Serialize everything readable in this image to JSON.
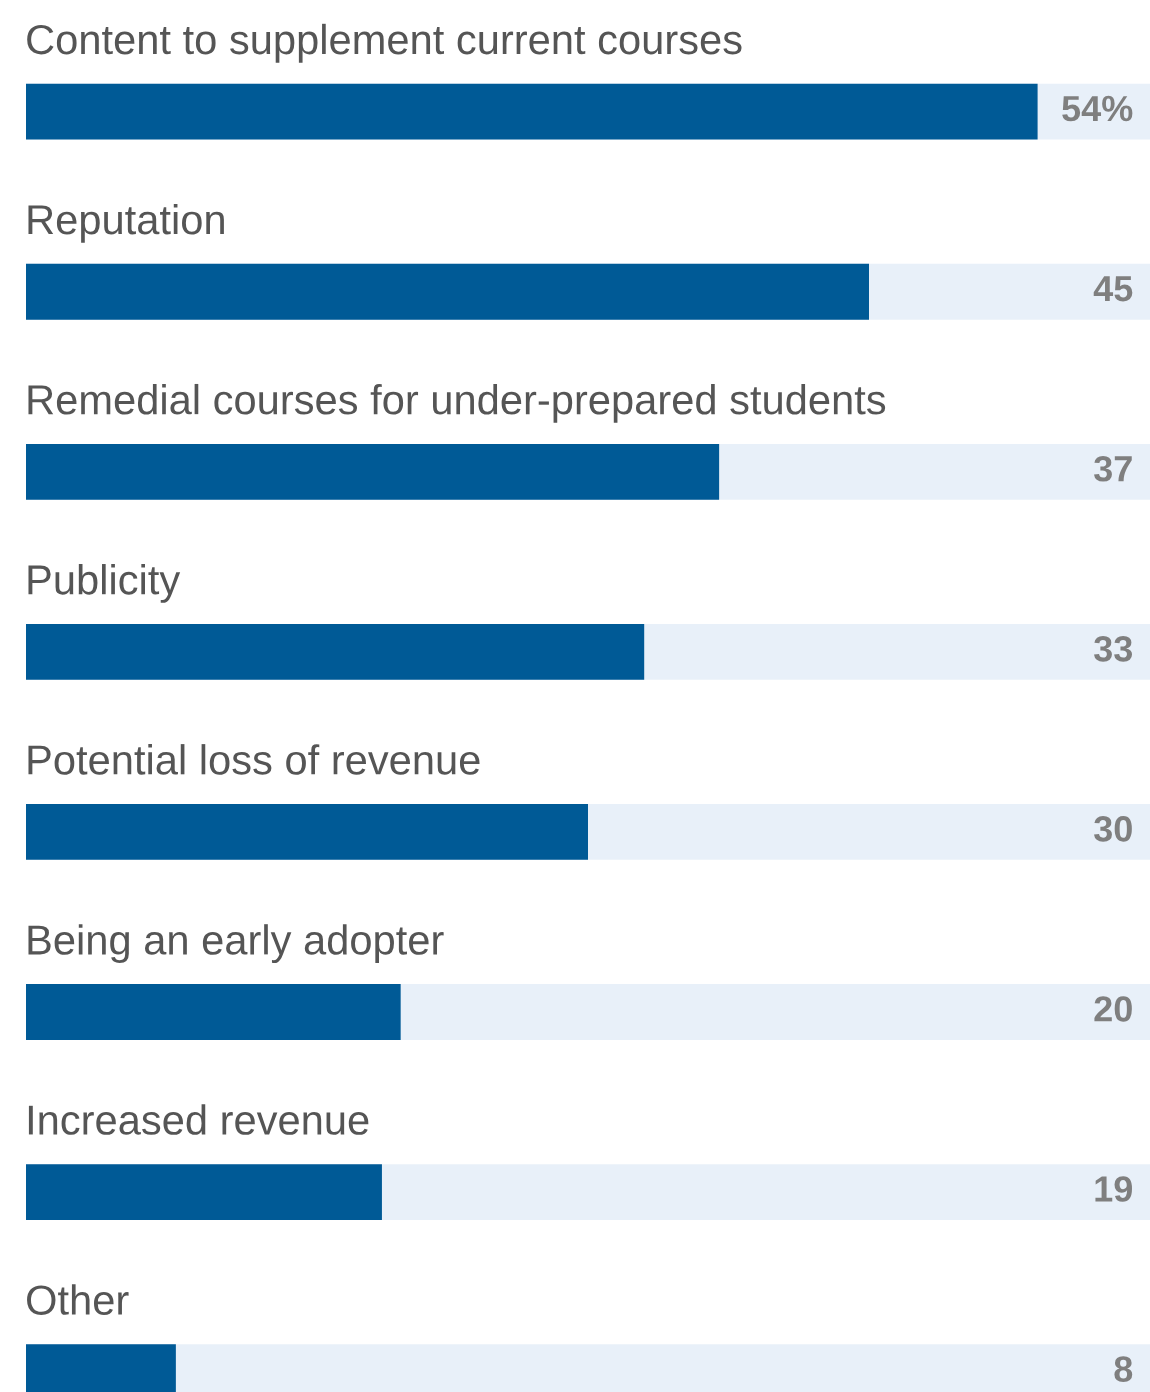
{
  "chart_data": {
    "type": "bar",
    "orientation": "horizontal",
    "categories": [
      "Content to supplement current courses",
      "Reputation",
      "Remedial courses for under-prepared students",
      "Publicity",
      "Potential loss of revenue",
      "Being an early adopter",
      "Increased revenue",
      "Other"
    ],
    "values": [
      54,
      45,
      37,
      33,
      30,
      20,
      19,
      8
    ],
    "value_labels": [
      "54%",
      "45",
      "37",
      "33",
      "30",
      "20",
      "19",
      "8"
    ],
    "color": "#005a96",
    "xlim": [
      0,
      60
    ]
  }
}
